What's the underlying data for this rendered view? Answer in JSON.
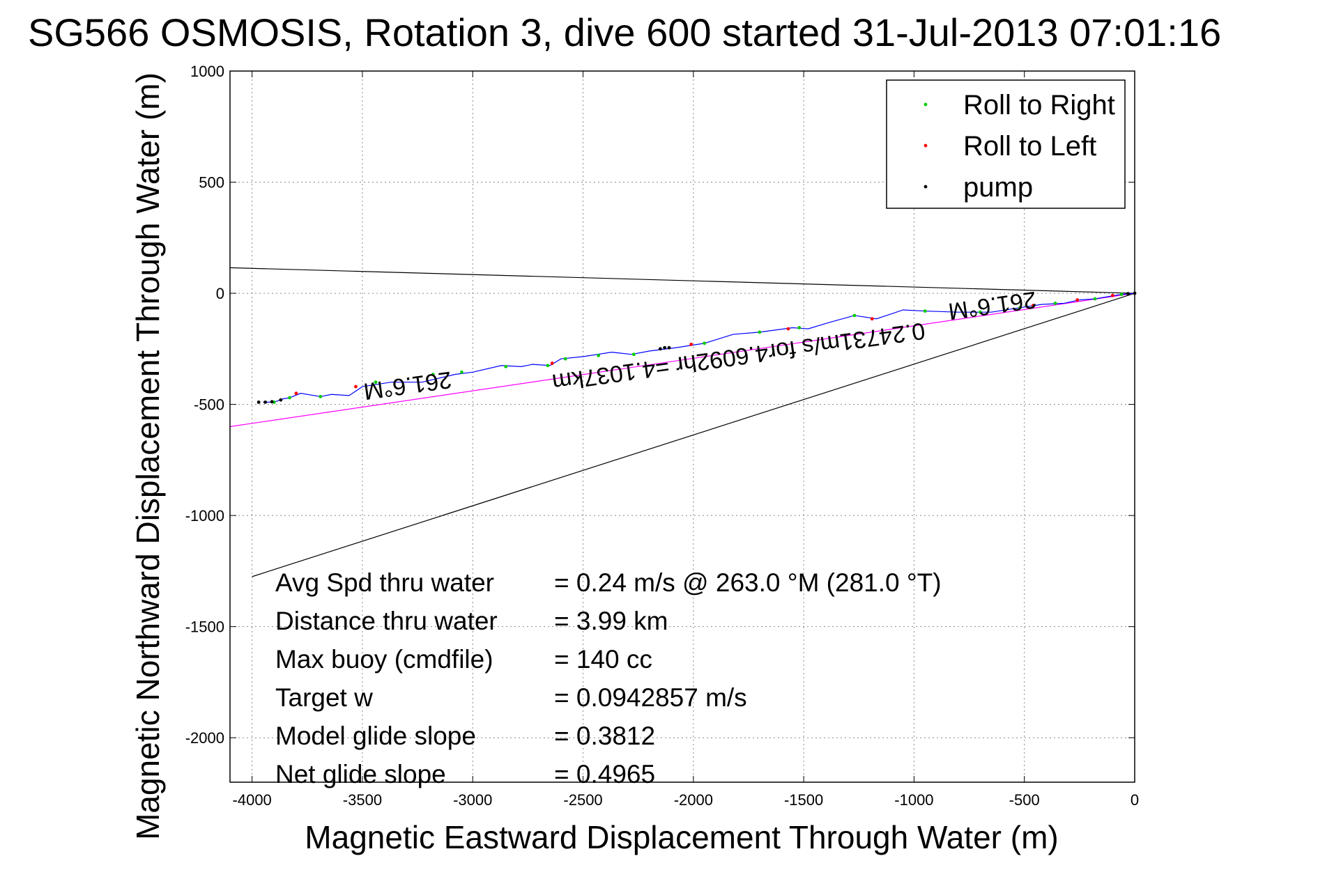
{
  "chart_data": {
    "type": "line",
    "title": "SG566 OSMOSIS, Rotation 3, dive 600 started 31-Jul-2013 07:01:16",
    "xlabel": "Magnetic Eastward Displacement Through Water (m)",
    "ylabel": "Magnetic Northward Displacement Through Water (m)",
    "xlim": [
      -4100,
      0
    ],
    "ylim": [
      -2200,
      1000
    ],
    "xticks": [
      -4000,
      -3500,
      -3000,
      -2500,
      -2000,
      -1500,
      -1000,
      -500,
      0
    ],
    "yticks": [
      1000,
      500,
      0,
      -500,
      -1000,
      -1500,
      -2000
    ],
    "grid": true,
    "legend": {
      "position": "top-right",
      "entries": [
        {
          "label": "Roll to Right",
          "color": "#00cc00"
        },
        {
          "label": "Roll to Left",
          "color": "#ff0000"
        },
        {
          "label": "pump",
          "color": "#000000"
        }
      ]
    },
    "track": {
      "name": "track",
      "color": "#0000ff",
      "x": [
        0,
        -60,
        -120,
        -180,
        -250,
        -320,
        -420,
        -520,
        -650,
        -800,
        -950,
        -1050,
        -1170,
        -1270,
        -1380,
        -1480,
        -1550,
        -1700,
        -1820,
        -1950,
        -2080,
        -2200,
        -2280,
        -2370,
        -2500,
        -2600,
        -2650,
        -2730,
        -2780,
        -2870,
        -3000,
        -3080,
        -3230,
        -3370,
        -3500,
        -3560,
        -3640,
        -3690,
        -3780,
        -3830,
        -3860,
        -3900,
        -3950
      ],
      "y": [
        0,
        -5,
        -15,
        -25,
        -30,
        -45,
        -50,
        -65,
        -85,
        -85,
        -80,
        -75,
        -115,
        -100,
        -130,
        -160,
        -155,
        -175,
        -185,
        -225,
        -245,
        -260,
        -275,
        -265,
        -285,
        -295,
        -325,
        -320,
        -330,
        -325,
        -355,
        -365,
        -400,
        -400,
        -420,
        -460,
        -455,
        -465,
        -450,
        -470,
        -475,
        -490,
        -490
      ]
    },
    "points": {
      "roll_right": {
        "x": [
          -60,
          -180,
          -360,
          -520,
          -700,
          -950,
          -1270,
          -1520,
          -1700,
          -1950,
          -2130,
          -2270,
          -2430,
          -2580,
          -2660,
          -2850,
          -3050,
          -3180,
          -3440,
          -3690,
          -3830,
          -3900
        ],
        "y": [
          -5,
          -25,
          -45,
          -65,
          -85,
          -80,
          -100,
          -155,
          -175,
          -225,
          -245,
          -275,
          -280,
          -295,
          -325,
          -330,
          -355,
          -365,
          -400,
          -465,
          -470,
          -490
        ]
      },
      "roll_left": {
        "x": [
          -100,
          -260,
          -460,
          -1190,
          -1570,
          -2010,
          -2640,
          -3530,
          -3800
        ],
        "y": [
          -10,
          -30,
          -55,
          -115,
          -160,
          -230,
          -315,
          -420,
          -450
        ]
      },
      "pump": {
        "x": [
          0,
          -30,
          -2110,
          -2130,
          -2150,
          -3870,
          -3910,
          -3940,
          -3970
        ],
        "y": [
          0,
          -2,
          -245,
          -245,
          -250,
          -480,
          -488,
          -490,
          -490
        ]
      }
    },
    "reference_lines": [
      {
        "name": "upper-bound",
        "color": "#000000",
        "x": [
          0,
          -4100
        ],
        "y": [
          0,
          115
        ]
      },
      {
        "name": "lower-bound",
        "color": "#000000",
        "x": [
          0,
          -4000
        ],
        "y": [
          0,
          -1275
        ]
      },
      {
        "name": "average-heading",
        "color": "#ff00ff",
        "x": [
          0,
          -4100
        ],
        "y": [
          0,
          -600
        ]
      }
    ],
    "annotations": [
      {
        "text": "261.6°M",
        "x": -3300,
        "y": -380,
        "angle": 172
      },
      {
        "text": "261.6°M",
        "x": -650,
        "y": -20,
        "angle": 172
      },
      {
        "text": "0.24731m/s for4.6092hr =4.1037km",
        "x": -1800,
        "y": -250,
        "angle": 172
      }
    ],
    "stats": [
      {
        "label": "Avg Spd thru water",
        "value": "=  0.24 m/s @ 263.0 °M (281.0 °T)"
      },
      {
        "label": "Distance thru water",
        "value": "=  3.99 km"
      },
      {
        "label": "Max buoy (cmdfile)",
        "value": "= 140 cc"
      },
      {
        "label": "Target w",
        "value": "= 0.0942857 m/s"
      },
      {
        "label": "Model glide slope",
        "value": "= 0.3812"
      },
      {
        "label": "Net glide slope",
        "value": "= 0.4965"
      }
    ]
  }
}
